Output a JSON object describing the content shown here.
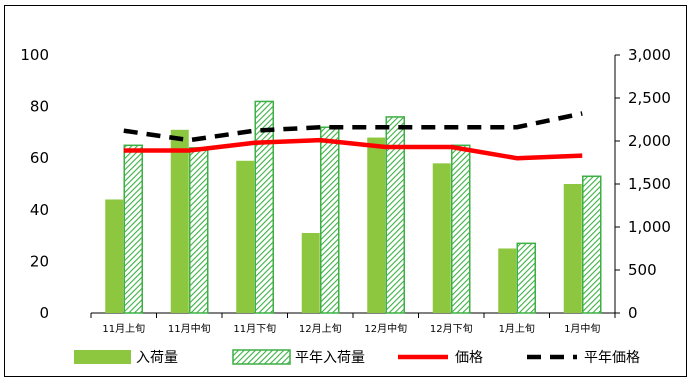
{
  "chart_data": {
    "type": "bar",
    "title": "",
    "categories": [
      "11月上旬",
      "11月中旬",
      "11月下旬",
      "12月上旬",
      "12月中旬",
      "12月下旬",
      "1月上旬",
      "1月中旬"
    ],
    "left_axis": {
      "ylim": [
        0,
        100
      ],
      "ticks": [
        "0",
        "20",
        "40",
        "60",
        "80",
        "100"
      ]
    },
    "right_axis": {
      "ylim": [
        0,
        3000
      ],
      "ticks": [
        "0",
        "500",
        "1,000",
        "1,500",
        "2,000",
        "2,500",
        "3,000"
      ]
    },
    "series": [
      {
        "name": "入荷量",
        "type": "bar",
        "axis": "left",
        "values": [
          44,
          71,
          59,
          31,
          68,
          58,
          25,
          50
        ],
        "color": "#8dc63f"
      },
      {
        "name": "平年入荷量",
        "type": "bar-hatched",
        "axis": "left",
        "values": [
          65,
          64,
          82,
          72,
          76,
          65,
          27,
          53
        ],
        "color": "#3cb043"
      },
      {
        "name": "価格",
        "type": "line",
        "axis": "right",
        "values": [
          1890,
          1890,
          1980,
          2010,
          1930,
          1930,
          1800,
          1830
        ],
        "color": "#ff0000"
      },
      {
        "name": "平年価格",
        "type": "line-dashed",
        "axis": "right",
        "values": [
          2120,
          2010,
          2120,
          2160,
          2160,
          2160,
          2160,
          2320
        ],
        "color": "#000000"
      }
    ],
    "grid": false,
    "legend_position": "bottom"
  }
}
